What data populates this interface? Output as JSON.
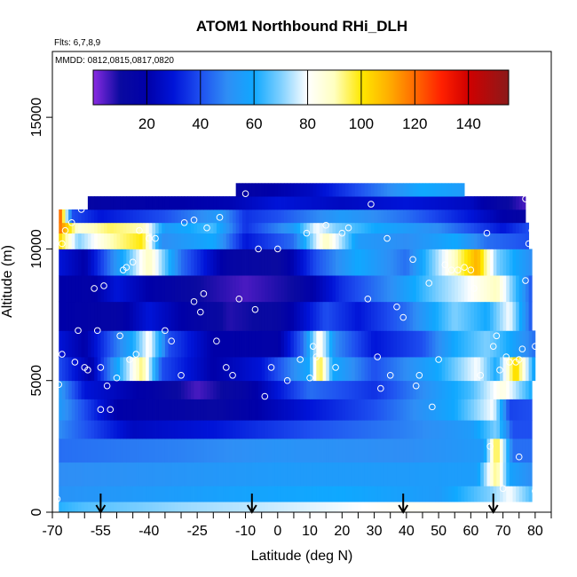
{
  "chart_data": {
    "type": "heatmap",
    "title": "ATOM1 Northbound RHi_DLH",
    "subtitle_flights": "Flts: 6,7,8,9",
    "subtitle_dates": "MMDD: 0812,0815,0817,0820",
    "xlabel": "Latitude (deg N)",
    "ylabel": "Altitude (m)",
    "xlim": [
      -70,
      85
    ],
    "ylim": [
      0,
      17500
    ],
    "x_ticks": [
      -70,
      -65,
      -60,
      -55,
      -50,
      -45,
      -40,
      -35,
      -30,
      -25,
      -20,
      -15,
      -10,
      -5,
      0,
      5,
      10,
      15,
      20,
      25,
      30,
      35,
      40,
      45,
      50,
      55,
      60,
      65,
      70,
      75,
      80,
      85
    ],
    "x_tick_labels": [
      "-70",
      "-55",
      "-40",
      "-25",
      "-10",
      "0",
      "10",
      "20",
      "30",
      "40",
      "50",
      "60",
      "70",
      "80"
    ],
    "y_ticks": [
      0,
      5000,
      10000,
      15000
    ],
    "y_tick_labels": [
      "0",
      "5000",
      "10000",
      "15000"
    ],
    "colorbar": {
      "min": 0,
      "max": 155,
      "ticks": [
        20,
        40,
        60,
        80,
        100,
        120,
        140
      ],
      "tick_labels": [
        "20",
        "40",
        "60",
        "80",
        "100",
        "120",
        "140"
      ],
      "dividers": [
        20,
        40,
        60,
        80,
        100,
        120,
        140
      ],
      "stops": [
        {
          "v": 0,
          "c": "#8a2be2"
        },
        {
          "v": 10,
          "c": "#0a0aa0"
        },
        {
          "v": 20,
          "c": "#0000a8"
        },
        {
          "v": 30,
          "c": "#0014d8"
        },
        {
          "v": 40,
          "c": "#1e4ff0"
        },
        {
          "v": 50,
          "c": "#2f8ef5"
        },
        {
          "v": 60,
          "c": "#0fa8ff"
        },
        {
          "v": 70,
          "c": "#7fd0ff"
        },
        {
          "v": 80,
          "c": "#ffffff"
        },
        {
          "v": 90,
          "c": "#ffffc0"
        },
        {
          "v": 100,
          "c": "#ffe800"
        },
        {
          "v": 110,
          "c": "#ffb000"
        },
        {
          "v": 120,
          "c": "#ff6a00"
        },
        {
          "v": 130,
          "c": "#ff2000"
        },
        {
          "v": 140,
          "c": "#d00000"
        },
        {
          "v": 155,
          "c": "#8b1a1a"
        }
      ]
    },
    "profile_markers_lat": [
      -55,
      -8,
      39,
      67
    ],
    "bands": [
      {
        "y": [
          0,
          400
        ],
        "x": [
          -68,
          73
        ],
        "v": [
          [
            -68,
            62
          ],
          [
            -60,
            66
          ],
          [
            -30,
            72
          ],
          [
            0,
            76
          ],
          [
            40,
            82
          ],
          [
            73,
            80
          ]
        ]
      },
      {
        "y": [
          400,
          1000
        ],
        "x": [
          -68,
          79
        ],
        "v": [
          [
            -68,
            52
          ],
          [
            -40,
            55
          ],
          [
            -10,
            58
          ],
          [
            20,
            60
          ],
          [
            50,
            55
          ],
          [
            66,
            70
          ],
          [
            72,
            80
          ],
          [
            79,
            65
          ]
        ]
      },
      {
        "y": [
          1000,
          1900
        ],
        "x": [
          -68,
          79
        ],
        "v": [
          [
            -68,
            50
          ],
          [
            -40,
            52
          ],
          [
            0,
            55
          ],
          [
            40,
            55
          ],
          [
            62,
            56
          ],
          [
            68,
            95
          ],
          [
            72,
            58
          ],
          [
            79,
            50
          ]
        ]
      },
      {
        "y": [
          1900,
          2800
        ],
        "x": [
          -68,
          79
        ],
        "v": [
          [
            -68,
            45
          ],
          [
            -30,
            48
          ],
          [
            0,
            52
          ],
          [
            40,
            50
          ],
          [
            64,
            55
          ],
          [
            68,
            100
          ],
          [
            73,
            45
          ],
          [
            79,
            45
          ]
        ]
      },
      {
        "y": [
          2800,
          3500
        ],
        "x": [
          -68,
          79
        ],
        "v": [
          [
            -68,
            50
          ],
          [
            -45,
            25
          ],
          [
            -20,
            30
          ],
          [
            10,
            40
          ],
          [
            40,
            48
          ],
          [
            60,
            55
          ],
          [
            68,
            70
          ],
          [
            73,
            40
          ]
        ]
      },
      {
        "y": [
          3500,
          4300
        ],
        "x": [
          -68,
          79
        ],
        "v": [
          [
            -68,
            55
          ],
          [
            -50,
            20
          ],
          [
            -20,
            12
          ],
          [
            10,
            30
          ],
          [
            30,
            40
          ],
          [
            55,
            60
          ],
          [
            67,
            80
          ],
          [
            72,
            38
          ],
          [
            79,
            40
          ]
        ]
      },
      {
        "y": [
          4300,
          5000
        ],
        "x": [
          -68,
          79
        ],
        "v": [
          [
            -68,
            55
          ],
          [
            -60,
            30
          ],
          [
            -40,
            18
          ],
          [
            -25,
            5
          ],
          [
            -10,
            15
          ],
          [
            10,
            45
          ],
          [
            30,
            35
          ],
          [
            50,
            55
          ],
          [
            60,
            65
          ],
          [
            70,
            85
          ],
          [
            79,
            60
          ]
        ]
      },
      {
        "y": [
          5000,
          5900
        ],
        "x": [
          -68,
          80
        ],
        "v": [
          [
            -68,
            40
          ],
          [
            -58,
            20
          ],
          [
            -42,
            95
          ],
          [
            -36,
            40
          ],
          [
            -20,
            20
          ],
          [
            -5,
            30
          ],
          [
            10,
            60
          ],
          [
            13,
            100
          ],
          [
            17,
            60
          ],
          [
            30,
            40
          ],
          [
            50,
            60
          ],
          [
            62,
            80
          ],
          [
            68,
            60
          ],
          [
            74,
            105
          ],
          [
            80,
            55
          ]
        ]
      },
      {
        "y": [
          5900,
          6900
        ],
        "x": [
          -68,
          80
        ],
        "v": [
          [
            -68,
            30
          ],
          [
            -60,
            20
          ],
          [
            -45,
            60
          ],
          [
            -40,
            82
          ],
          [
            -34,
            40
          ],
          [
            -20,
            20
          ],
          [
            0,
            18
          ],
          [
            8,
            45
          ],
          [
            13,
            85
          ],
          [
            18,
            50
          ],
          [
            30,
            30
          ],
          [
            45,
            40
          ],
          [
            55,
            60
          ],
          [
            65,
            70
          ],
          [
            72,
            60
          ],
          [
            80,
            45
          ]
        ]
      },
      {
        "y": [
          6900,
          8000
        ],
        "x": [
          -68,
          79
        ],
        "v": [
          [
            -68,
            20
          ],
          [
            -50,
            15
          ],
          [
            -40,
            30
          ],
          [
            -30,
            20
          ],
          [
            -15,
            8
          ],
          [
            0,
            12
          ],
          [
            15,
            40
          ],
          [
            25,
            30
          ],
          [
            40,
            45
          ],
          [
            55,
            70
          ],
          [
            65,
            60
          ],
          [
            72,
            80
          ],
          [
            79,
            40
          ]
        ]
      },
      {
        "y": [
          8000,
          9000
        ],
        "x": [
          -68,
          79
        ],
        "v": [
          [
            -68,
            20
          ],
          [
            -58,
            18
          ],
          [
            -50,
            30
          ],
          [
            -40,
            20
          ],
          [
            -25,
            10
          ],
          [
            -10,
            5
          ],
          [
            5,
            10
          ],
          [
            20,
            35
          ],
          [
            35,
            50
          ],
          [
            50,
            70
          ],
          [
            60,
            80
          ],
          [
            68,
            90
          ],
          [
            75,
            60
          ],
          [
            79,
            40
          ]
        ]
      },
      {
        "y": [
          9000,
          10000
        ],
        "x": [
          -68,
          79
        ],
        "v": [
          [
            -68,
            30
          ],
          [
            -60,
            20
          ],
          [
            -48,
            60
          ],
          [
            -40,
            90
          ],
          [
            -30,
            45
          ],
          [
            -15,
            15
          ],
          [
            0,
            10
          ],
          [
            12,
            40
          ],
          [
            25,
            60
          ],
          [
            40,
            45
          ],
          [
            52,
            80
          ],
          [
            57,
            95
          ],
          [
            62,
            110
          ],
          [
            68,
            70
          ],
          [
            79,
            50
          ]
        ]
      },
      {
        "y": [
          10000,
          10600
        ],
        "x": [
          -68,
          78
        ],
        "v": [
          [
            -68,
            105
          ],
          [
            -62,
            70
          ],
          [
            -52,
            90
          ],
          [
            -42,
            100
          ],
          [
            -36,
            50
          ],
          [
            -20,
            60
          ],
          [
            -10,
            30
          ],
          [
            5,
            45
          ],
          [
            15,
            90
          ],
          [
            25,
            55
          ],
          [
            40,
            50
          ],
          [
            55,
            60
          ],
          [
            65,
            45
          ],
          [
            78,
            40
          ]
        ]
      },
      {
        "y": [
          10600,
          11000
        ],
        "x": [
          -68,
          78
        ],
        "v": [
          [
            -68,
            120
          ],
          [
            -62,
            85
          ],
          [
            -52,
            95
          ],
          [
            -42,
            90
          ],
          [
            -35,
            55
          ],
          [
            -20,
            65
          ],
          [
            -10,
            35
          ],
          [
            5,
            55
          ],
          [
            12,
            80
          ],
          [
            18,
            70
          ],
          [
            30,
            60
          ],
          [
            50,
            50
          ],
          [
            70,
            30
          ],
          [
            78,
            40
          ]
        ]
      },
      {
        "y": [
          11000,
          11500
        ],
        "x": [
          -68,
          77
        ],
        "v": [
          [
            -68,
            130
          ],
          [
            -64,
            40
          ],
          [
            -55,
            30
          ],
          [
            -35,
            40
          ],
          [
            -18,
            55
          ],
          [
            -10,
            35
          ],
          [
            0,
            40
          ],
          [
            20,
            55
          ],
          [
            40,
            45
          ],
          [
            60,
            30
          ],
          [
            70,
            20
          ],
          [
            77,
            15
          ]
        ]
      },
      {
        "y": [
          11500,
          12000
        ],
        "x": [
          -59,
          77
        ],
        "v": [
          [
            -59,
            15
          ],
          [
            -45,
            18
          ],
          [
            -30,
            20
          ],
          [
            -15,
            22
          ],
          [
            0,
            30
          ],
          [
            20,
            25
          ],
          [
            40,
            30
          ],
          [
            60,
            25
          ],
          [
            72,
            10
          ],
          [
            77,
            5
          ]
        ]
      },
      {
        "y": [
          12000,
          12500
        ],
        "x": [
          -13,
          58
        ],
        "v": [
          [
            -13,
            15
          ],
          [
            10,
            25
          ],
          [
            30,
            45
          ],
          [
            45,
            60
          ],
          [
            58,
            55
          ]
        ]
      }
    ],
    "points": [
      [
        -68.5,
        500
      ],
      [
        -68,
        4850
      ],
      [
        -67,
        6000
      ],
      [
        -67,
        10200
      ],
      [
        -66,
        10700
      ],
      [
        -64,
        11000
      ],
      [
        -61,
        11500
      ],
      [
        -63,
        5700
      ],
      [
        -62,
        6900
      ],
      [
        -60,
        5500
      ],
      [
        -59,
        5400
      ],
      [
        -57,
        8500
      ],
      [
        -56,
        6900
      ],
      [
        -55,
        5500
      ],
      [
        -55,
        3900
      ],
      [
        -54,
        8600
      ],
      [
        -53,
        4800
      ],
      [
        -52,
        3900
      ],
      [
        -50,
        5100
      ],
      [
        -49,
        6700
      ],
      [
        -48,
        9200
      ],
      [
        -47,
        9300
      ],
      [
        -46,
        5800
      ],
      [
        -45,
        9500
      ],
      [
        -44,
        6000
      ],
      [
        -43,
        10700
      ],
      [
        -40,
        10400
      ],
      [
        -38,
        10400
      ],
      [
        -35,
        6900
      ],
      [
        -33,
        6500
      ],
      [
        -30,
        5200
      ],
      [
        -29,
        11000
      ],
      [
        -26,
        11100
      ],
      [
        -26,
        8000
      ],
      [
        -24,
        7600
      ],
      [
        -23,
        8300
      ],
      [
        -22,
        10800
      ],
      [
        -19,
        6500
      ],
      [
        -18,
        11200
      ],
      [
        -16,
        5500
      ],
      [
        -14,
        5200
      ],
      [
        -12,
        8100
      ],
      [
        -10,
        12100
      ],
      [
        -7,
        7700
      ],
      [
        -6,
        10000
      ],
      [
        -4,
        4400
      ],
      [
        -2,
        5500
      ],
      [
        0,
        10000
      ],
      [
        3,
        5000
      ],
      [
        7,
        5800
      ],
      [
        9,
        10600
      ],
      [
        10,
        5100
      ],
      [
        11,
        6300
      ],
      [
        12,
        5900
      ],
      [
        15,
        10900
      ],
      [
        18,
        5500
      ],
      [
        20,
        10600
      ],
      [
        22,
        10800
      ],
      [
        28,
        8100
      ],
      [
        29,
        11700
      ],
      [
        31,
        5900
      ],
      [
        32,
        4700
      ],
      [
        34,
        10400
      ],
      [
        35,
        5200
      ],
      [
        37,
        7800
      ],
      [
        39,
        7400
      ],
      [
        42,
        9600
      ],
      [
        43,
        4800
      ],
      [
        44,
        5200
      ],
      [
        47,
        8700
      ],
      [
        48,
        4000
      ],
      [
        50,
        5800
      ],
      [
        52,
        9400
      ],
      [
        54,
        9200
      ],
      [
        56,
        9200
      ],
      [
        58,
        9300
      ],
      [
        60,
        9200
      ],
      [
        61,
        8500
      ],
      [
        63,
        5200
      ],
      [
        65,
        10600
      ],
      [
        66,
        2500
      ],
      [
        67,
        6300
      ],
      [
        68,
        6700
      ],
      [
        69,
        5400
      ],
      [
        70,
        900
      ],
      [
        71,
        5900
      ],
      [
        72,
        5700
      ],
      [
        74,
        5700
      ],
      [
        75,
        5800
      ],
      [
        75,
        2100
      ],
      [
        76,
        6200
      ],
      [
        77,
        8800
      ],
      [
        77,
        11900
      ],
      [
        78,
        10200
      ],
      [
        79,
        10700
      ],
      [
        80,
        6300
      ],
      [
        80,
        800
      ]
    ]
  }
}
